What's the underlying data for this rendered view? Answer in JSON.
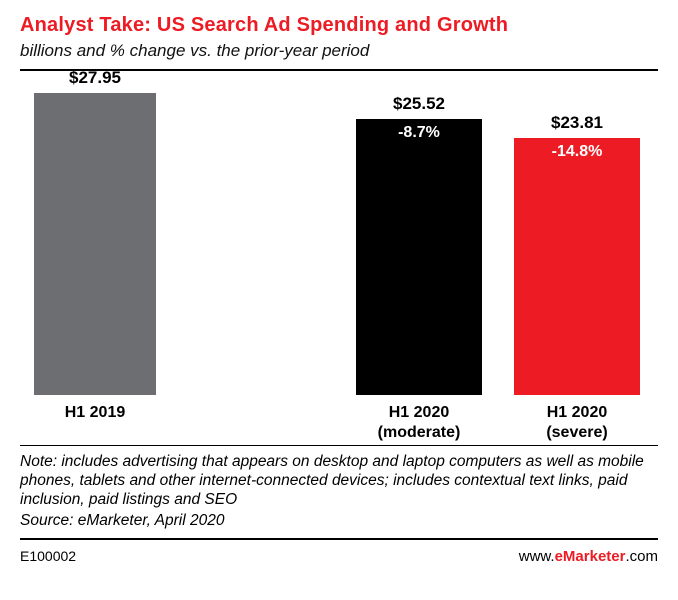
{
  "header": {
    "title": "Analyst Take: US Search Ad Spending and Growth",
    "subtitle": "billions and % change vs. the prior-year period"
  },
  "chart_data": {
    "type": "bar",
    "title": "Analyst Take: US Search Ad Spending and Growth",
    "subtitle": "billions and % change vs. the prior-year period",
    "categories": [
      "H1 2019",
      "H1 2020 (moderate)",
      "H1 2020 (severe)"
    ],
    "display_labels": [
      "H1 2019",
      "H1 2020\n(moderate)",
      "H1 2020\n(severe)"
    ],
    "values": [
      27.95,
      25.52,
      23.81
    ],
    "value_labels": [
      "$27.95",
      "$25.52",
      "$23.81"
    ],
    "pct_labels": [
      null,
      "-8.7%",
      "-14.8%"
    ],
    "bar_colors": [
      "#6d6e71",
      "#000000",
      "#ed1c24"
    ],
    "units": "billions USD",
    "ylim": [
      0,
      27.95
    ],
    "grid": false,
    "legend": "none",
    "xlabel": "",
    "ylabel": ""
  },
  "note": {
    "note_text": "Note: includes advertising that appears on desktop and laptop computers as well as mobile phones, tablets and other internet-connected devices; includes contextual text links, paid inclusion, paid listings and SEO",
    "source_text": "Source: eMarketer, April 2020"
  },
  "footer": {
    "code": "E100002",
    "url_prefix": "www.",
    "url_brand": "eMarketer",
    "url_suffix": ".com"
  },
  "colors": {
    "accent_red": "#ed1c24",
    "bar_gray": "#6d6e71",
    "bar_black": "#000000",
    "bar_red": "#ed1c24"
  }
}
